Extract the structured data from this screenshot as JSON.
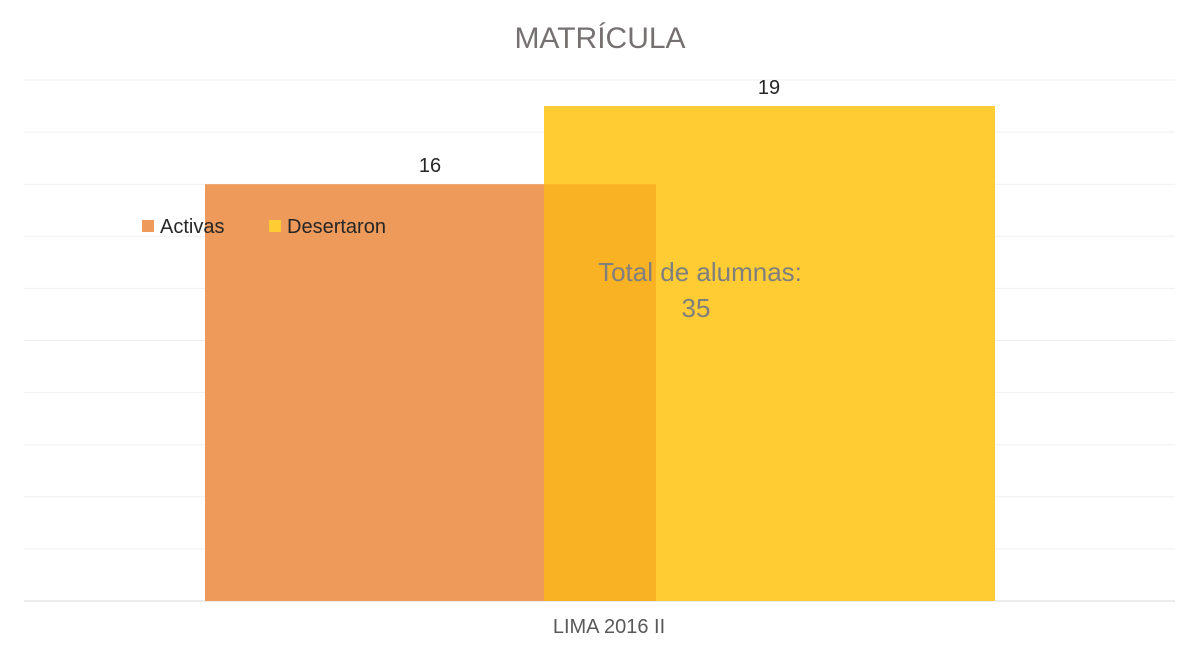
{
  "chart_data": {
    "type": "bar",
    "title": "MATRÍCULA",
    "categories": [
      "LIMA   2016   II"
    ],
    "series": [
      {
        "name": "Activas",
        "values": [
          16
        ],
        "color": "#ED9A5B"
      },
      {
        "name": "Desertaron",
        "values": [
          19
        ],
        "color": "#FFCC33"
      }
    ],
    "ylim": [
      0,
      20
    ],
    "grid": true,
    "legend": "top-left",
    "annotation": [
      "Total de alumnas:",
      "35"
    ],
    "overlap_color": "#F9B223"
  }
}
